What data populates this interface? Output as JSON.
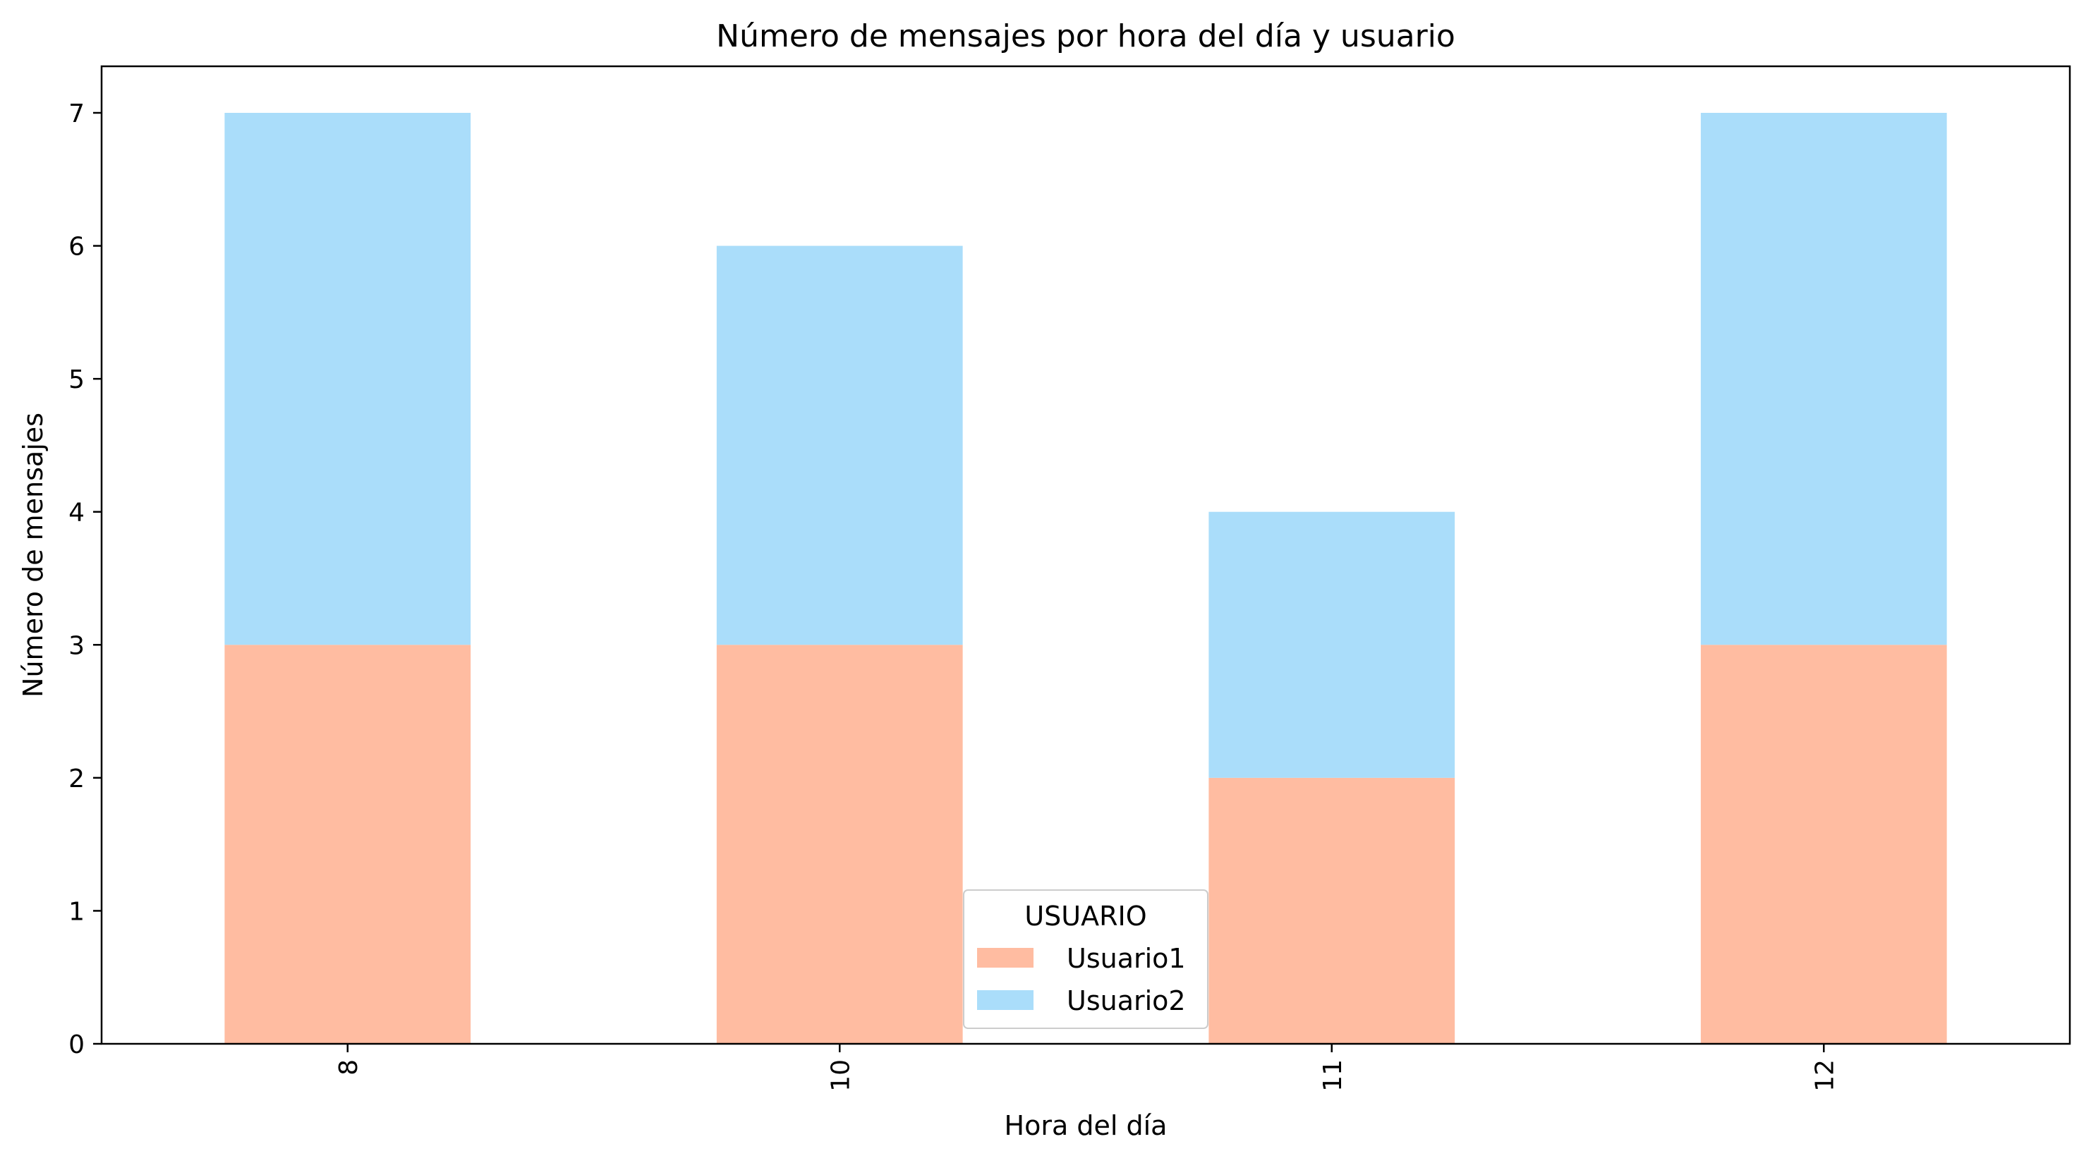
{
  "chart_data": {
    "type": "bar",
    "stacked": true,
    "title": "Número de mensajes por hora del día y usuario",
    "xlabel": "Hora del día",
    "ylabel": "Número de mensajes",
    "categories": [
      "8",
      "10",
      "11",
      "12"
    ],
    "series": [
      {
        "name": "Usuario1",
        "values": [
          3,
          3,
          2,
          3
        ],
        "color": "#FFBCA1"
      },
      {
        "name": "Usuario2",
        "values": [
          4,
          3,
          2,
          4
        ],
        "color": "#AADDFA"
      }
    ],
    "ylim": [
      0,
      7.35
    ],
    "yticks": [
      "0",
      "1",
      "2",
      "3",
      "4",
      "5",
      "6",
      "7"
    ],
    "grid": false,
    "legend": {
      "title": "USUARIO",
      "placement": "bottom-center"
    }
  }
}
